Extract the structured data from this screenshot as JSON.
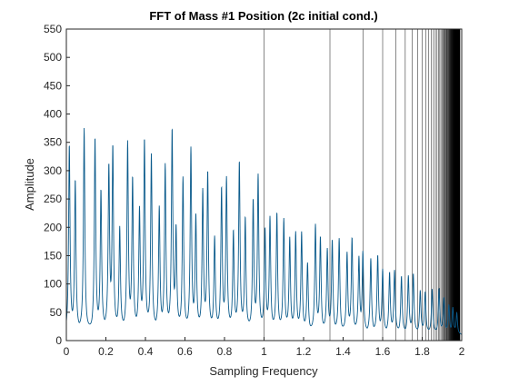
{
  "chart_data": {
    "type": "line",
    "title": "FFT of Mass #1 Position (2c initial cond.)",
    "xlabel": "Sampling Frequency",
    "ylabel": "Amplitude",
    "xlim": [
      0,
      2
    ],
    "ylim": [
      0,
      550
    ],
    "xticks": [
      "0",
      "0.2",
      "0.4",
      "0.6",
      "0.8",
      "1",
      "1.2",
      "1.4",
      "1.6",
      "1.8",
      "2"
    ],
    "yticks": [
      "0",
      "50",
      "100",
      "150",
      "200",
      "250",
      "300",
      "350",
      "400",
      "450",
      "500",
      "550"
    ],
    "grid": false,
    "legend": "none",
    "colors": {
      "series": "#0b5b8c",
      "reference_lines": "#000000",
      "axes": "#262626"
    },
    "series": [
      {
        "x": [
          0.015,
          0.045,
          0.09,
          0.145,
          0.175,
          0.215,
          0.235,
          0.27,
          0.31,
          0.335,
          0.37,
          0.395,
          0.43,
          0.47,
          0.5,
          0.535,
          0.555,
          0.59,
          0.63,
          0.655,
          0.69,
          0.715,
          0.75,
          0.785,
          0.81,
          0.845,
          0.875,
          0.905,
          0.945,
          0.97,
          1.005,
          1.03,
          1.065,
          1.1,
          1.13,
          1.16,
          1.19,
          1.22,
          1.26,
          1.285,
          1.32,
          1.345,
          1.38,
          1.42,
          1.445,
          1.48,
          1.5,
          1.54,
          1.575,
          1.6,
          1.635,
          1.66,
          1.695,
          1.73,
          1.755,
          1.79,
          1.815,
          1.85,
          1.885,
          1.91,
          1.935,
          1.955,
          1.975
        ],
        "peaks": [
          330,
          265,
          360,
          340,
          245,
          285,
          320,
          180,
          330,
          265,
          210,
          335,
          310,
          215,
          290,
          350,
          175,
          270,
          320,
          200,
          245,
          280,
          165,
          250,
          270,
          175,
          300,
          200,
          230,
          275,
          180,
          200,
          210,
          200,
          165,
          175,
          175,
          120,
          190,
          165,
          145,
          160,
          165,
          140,
          165,
          130,
          140,
          130,
          135,
          110,
          105,
          110,
          100,
          100,
          105,
          75,
          75,
          80,
          80,
          65,
          50,
          45,
          40
        ]
      }
    ],
    "reference_lines": {
      "description": "vertical sampling lines at x = 2 - 2/n",
      "n_max": 200,
      "x": []
    }
  }
}
